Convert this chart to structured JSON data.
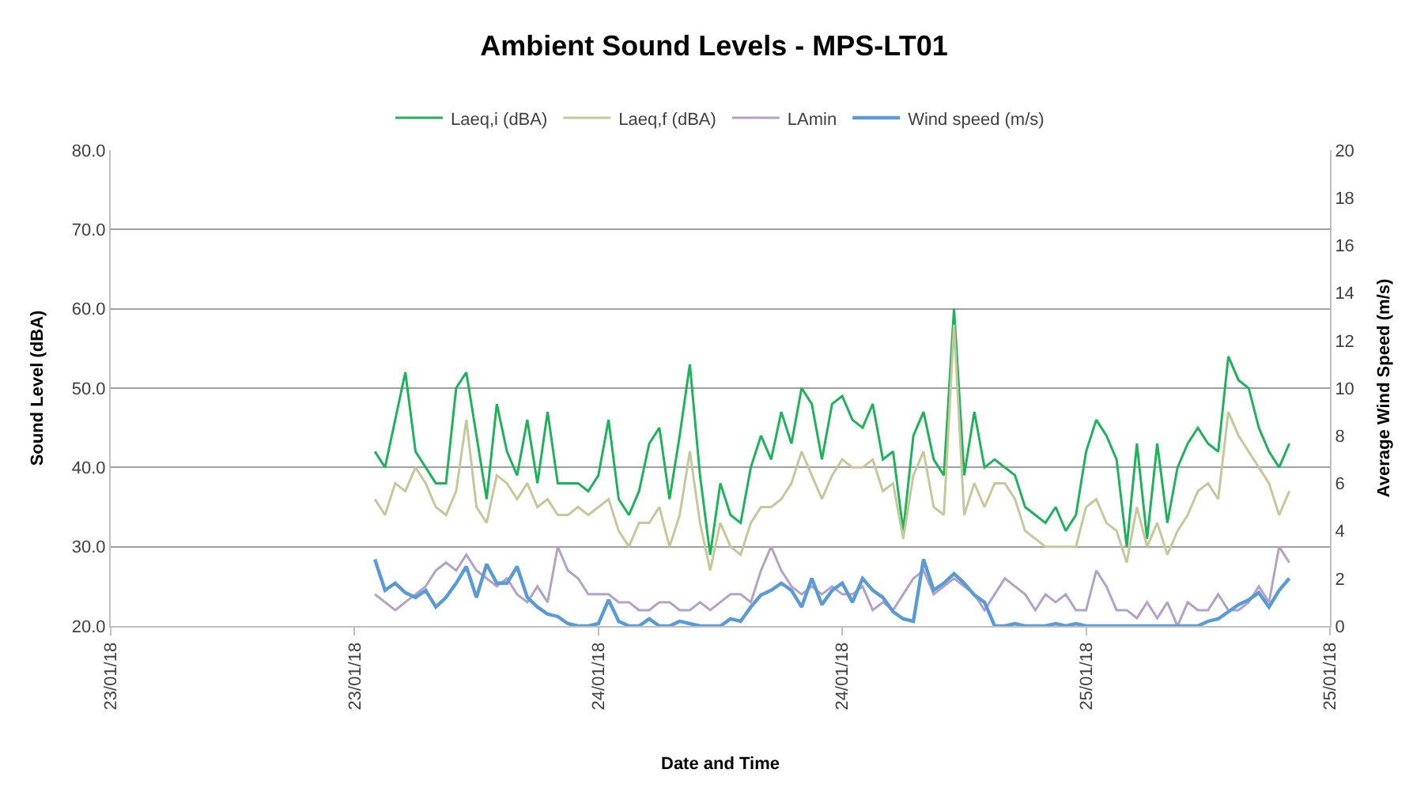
{
  "chart_data": {
    "type": "line",
    "title": "Ambient Sound Levels - MPS-LT01",
    "xlabel": "Date and Time",
    "ylabel": "Sound Level (dBA)",
    "y2label": "Average Wind Speed (m/s)",
    "x": [
      "--01-23T13:00",
      "--01-23T13:30",
      "--01-23T14:00",
      "--01-23T14:30",
      "--01-23T15:00",
      "--01-23T15:30",
      "--01-23T16:00",
      "--01-23T16:30",
      "--01-23T17:00",
      "--01-23T17:30",
      "--01-23T18:00",
      "--01-23T18:30",
      "--01-23T19:00",
      "--01-23T19:30",
      "--01-23T20:00",
      "--01-23T20:30",
      "--01-23T21:00",
      "--01-23T21:30",
      "--01-23T22:00",
      "--01-23T22:30",
      "--01-23T23:00",
      "--01-23T23:30",
      "--01-24T00:00",
      "--01-24T00:30",
      "--01-24T01:00",
      "--01-24T01:30",
      "--01-24T02:00",
      "--01-24T02:30",
      "--01-24T03:00",
      "--01-24T03:30",
      "--01-24T04:00",
      "--01-24T04:30",
      "--01-24T05:00",
      "--01-24T05:30",
      "--01-24T06:00",
      "--01-24T06:30",
      "--01-24T07:00",
      "--01-24T07:30",
      "--01-24T08:00",
      "--01-24T08:30",
      "--01-24T09:00",
      "--01-24T09:30",
      "--01-24T10:00",
      "--01-24T10:30",
      "--01-24T11:00",
      "--01-24T11:30",
      "--01-24T12:00",
      "--01-24T12:30",
      "--01-24T13:00",
      "--01-24T13:30",
      "--01-24T14:00",
      "--01-24T14:30",
      "--01-24T15:00",
      "--01-24T15:30",
      "--01-24T16:00",
      "--01-24T16:30",
      "--01-24T17:00",
      "--01-24T17:30",
      "--01-24T18:00",
      "--01-24T18:30",
      "--01-24T19:00",
      "--01-24T19:30",
      "--01-24T20:00",
      "--01-24T20:30",
      "--01-24T21:00",
      "--01-24T21:30",
      "--01-24T22:00",
      "--01-24T22:30",
      "--01-24T23:00",
      "--01-24T23:30",
      "--01-25T00:00",
      "--01-25T00:30",
      "--01-25T01:00",
      "--01-25T01:30",
      "--01-25T02:00",
      "--01-25T02:30",
      "--01-25T03:00",
      "--01-25T03:30",
      "--01-25T04:00",
      "--01-25T04:30",
      "--01-25T05:00",
      "--01-25T05:30",
      "--01-25T06:00",
      "--01-25T06:30",
      "--01-25T07:00",
      "--01-25T07:30",
      "--01-25T08:00",
      "--01-25T08:30",
      "--01-25T09:00",
      "--01-25T09:30",
      "--01-25T10:00"
    ],
    "series": [
      {
        "name": "Laeq,i (dBA)",
        "color": "#1fb25a",
        "values": [
          42,
          40,
          46,
          52,
          42,
          40,
          38,
          38,
          50,
          52,
          44,
          36,
          48,
          42,
          39,
          46,
          38,
          47,
          38,
          38,
          38,
          37,
          39,
          46,
          36,
          34,
          37,
          43,
          45,
          36,
          44,
          53,
          39,
          29,
          38,
          34,
          33,
          40,
          44,
          41,
          47,
          43,
          50,
          48,
          41,
          48,
          49,
          46,
          45,
          48,
          41,
          42,
          32,
          44,
          47,
          41,
          39,
          60,
          39,
          47,
          40,
          41,
          40,
          39,
          35,
          34,
          33,
          35,
          32,
          34,
          42,
          46,
          44,
          41,
          30,
          43,
          31,
          43,
          33,
          40,
          43,
          45,
          43,
          42,
          54,
          51,
          50,
          45,
          42,
          40,
          43
        ]
      },
      {
        "name": "Laeq,f (dBA)",
        "color": "#c4c89a",
        "values": [
          36,
          34,
          38,
          37,
          40,
          38,
          35,
          34,
          37,
          46,
          35,
          33,
          39,
          38,
          36,
          38,
          35,
          36,
          34,
          34,
          35,
          34,
          35,
          36,
          32,
          30,
          33,
          33,
          35,
          30,
          34,
          42,
          33,
          27,
          33,
          30,
          29,
          33,
          35,
          35,
          36,
          38,
          42,
          39,
          36,
          39,
          41,
          40,
          40,
          41,
          37,
          38,
          31,
          39,
          42,
          35,
          34,
          58,
          34,
          38,
          35,
          38,
          38,
          36,
          32,
          31,
          30,
          30,
          30,
          30,
          35,
          36,
          33,
          32,
          28,
          35,
          30,
          33,
          29,
          32,
          34,
          37,
          38,
          36,
          47,
          44,
          42,
          40,
          38,
          34,
          37
        ]
      },
      {
        "name": "LAmin",
        "color": "#b3a2c7",
        "values": [
          24,
          23,
          22,
          23,
          24,
          25,
          27,
          28,
          27,
          29,
          27,
          26,
          25,
          26,
          24,
          23,
          25,
          23,
          30,
          27,
          26,
          24,
          24,
          24,
          23,
          23,
          22,
          22,
          23,
          23,
          22,
          22,
          23,
          22,
          23,
          24,
          24,
          23,
          27,
          30,
          27,
          25,
          24,
          25,
          24,
          25,
          24,
          24,
          25,
          22,
          23,
          22,
          24,
          26,
          27,
          24,
          25,
          26,
          25,
          24,
          22,
          24,
          26,
          25,
          24,
          22,
          24,
          23,
          24,
          22,
          22,
          27,
          25,
          22,
          22,
          21,
          23,
          21,
          23,
          20,
          23,
          22,
          22,
          24,
          22,
          22,
          23,
          25,
          23,
          30,
          28
        ]
      },
      {
        "name": "Wind speed (m/s)",
        "color": "#5b9bd5",
        "axis": "y2",
        "values": [
          2.8,
          1.5,
          1.8,
          1.4,
          1.2,
          1.5,
          0.8,
          1.2,
          1.8,
          2.5,
          1.2,
          2.6,
          1.8,
          1.8,
          2.5,
          1.2,
          0.8,
          0.5,
          0.4,
          0.1,
          0,
          0,
          0.1,
          1.1,
          0.2,
          0,
          0,
          0.3,
          0,
          0,
          0.2,
          0.1,
          0,
          0,
          0,
          0.3,
          0.2,
          0.8,
          1.3,
          1.5,
          1.8,
          1.5,
          0.8,
          2,
          0.9,
          1.5,
          1.8,
          1,
          2,
          1.5,
          1.2,
          0.6,
          0.3,
          0.2,
          2.8,
          1.5,
          1.8,
          2.2,
          1.8,
          1.3,
          1,
          0,
          0,
          0.1,
          0,
          0,
          0,
          0.1,
          0,
          0.1,
          0,
          0,
          0,
          0,
          0,
          0,
          0,
          0,
          0,
          0,
          0,
          0,
          0.2,
          0.3,
          0.6,
          0.9,
          1.1,
          1.4,
          0.8,
          1.5,
          2
        ]
      }
    ],
    "xlim": [
      "--01-23T00:00",
      "--01-25T12:00"
    ],
    "xticks": [
      {
        "value": "--01-23T00:00",
        "label": "23/01/18"
      },
      {
        "value": "--01-23T12:00",
        "label": "23/01/18"
      },
      {
        "value": "--01-24T00:00",
        "label": "24/01/18"
      },
      {
        "value": "--01-24T12:00",
        "label": "24/01/18"
      },
      {
        "value": "--01-25T00:00",
        "label": "25/01/18"
      },
      {
        "value": "--01-25T12:00",
        "label": "25/01/18"
      }
    ],
    "ylim": [
      20,
      80
    ],
    "yticks": [
      {
        "value": 20,
        "label": "20.0"
      },
      {
        "value": 30,
        "label": "30.0"
      },
      {
        "value": 40,
        "label": "40.0"
      },
      {
        "value": 50,
        "label": "50.0"
      },
      {
        "value": 60,
        "label": "60.0"
      },
      {
        "value": 70,
        "label": "70.0"
      },
      {
        "value": 80,
        "label": "80.0"
      }
    ],
    "y2lim": [
      0,
      20
    ],
    "y2ticks": [
      0,
      2,
      4,
      6,
      8,
      10,
      12,
      14,
      16,
      18,
      20
    ],
    "grid": "y",
    "legend": "top",
    "marker": "none",
    "line_style": "solid"
  }
}
